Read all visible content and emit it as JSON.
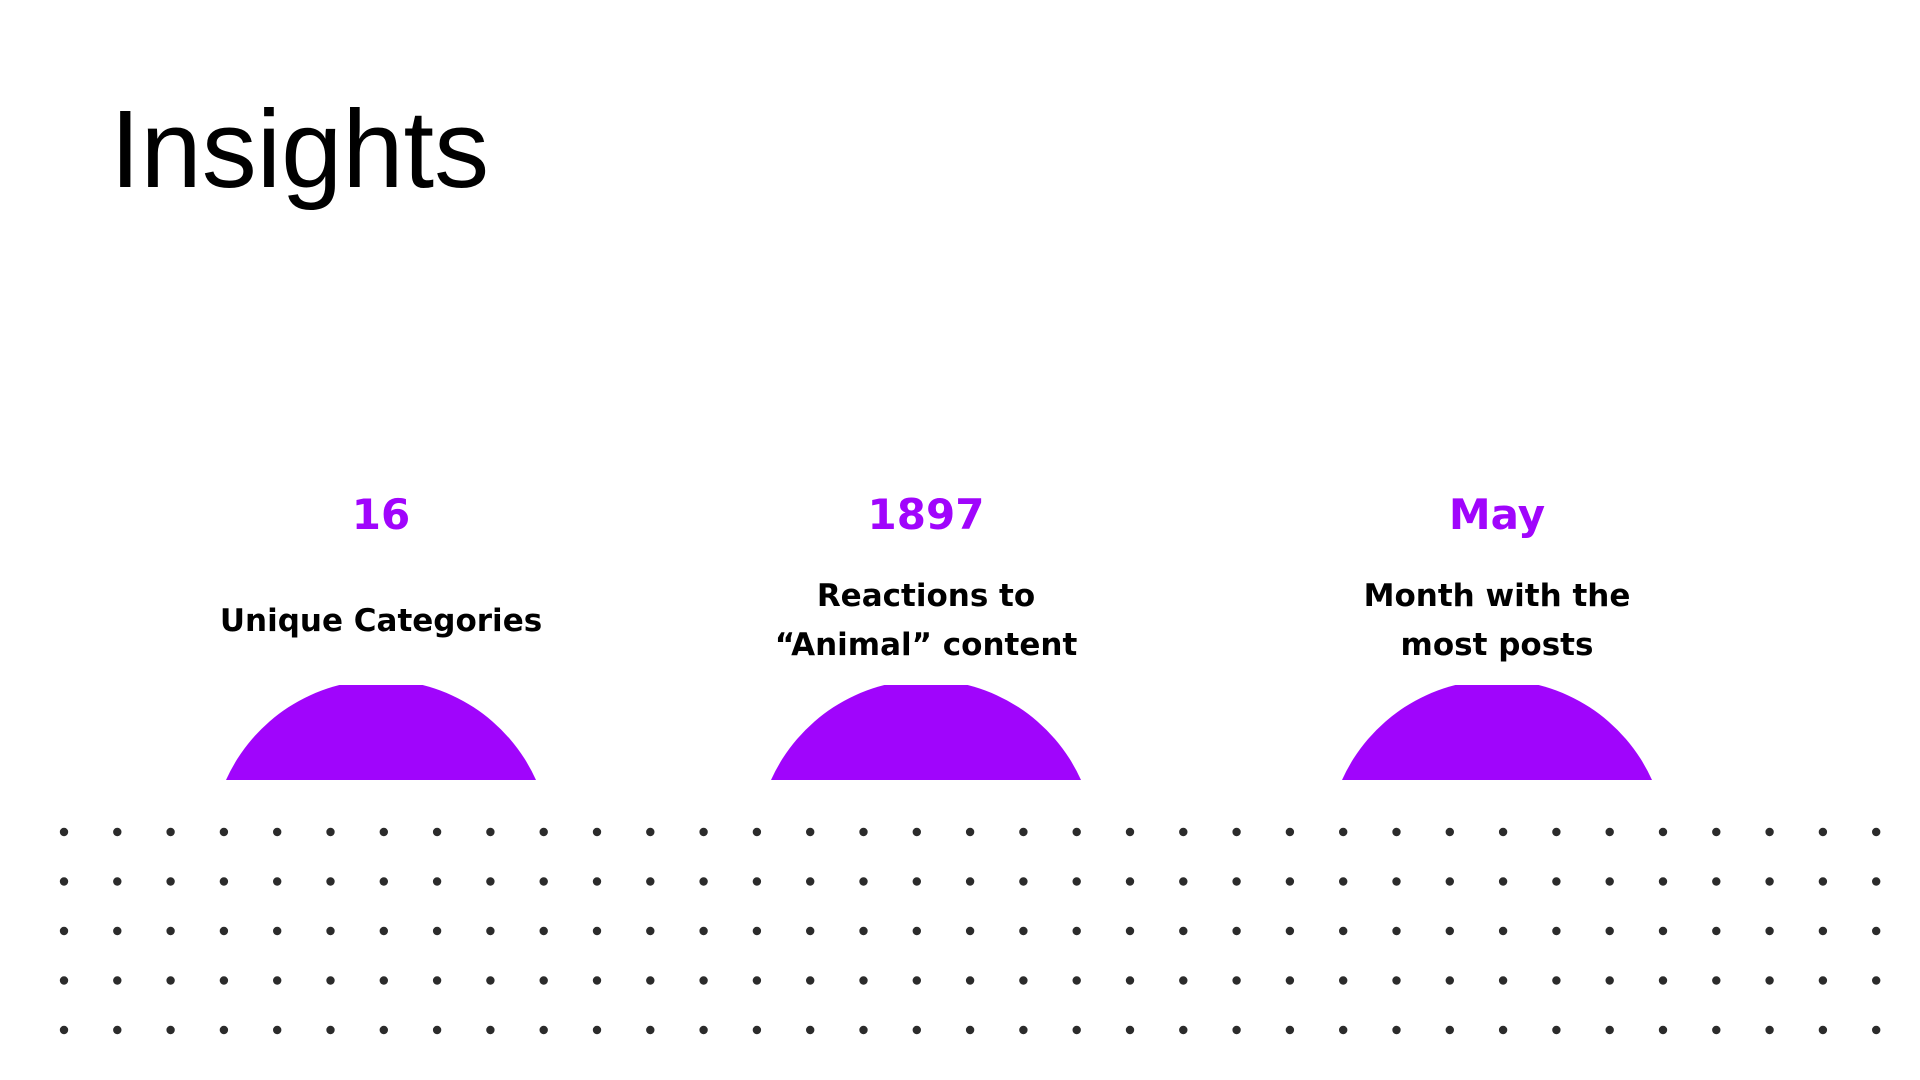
{
  "slide": {
    "title": "Insights"
  },
  "stats": [
    {
      "value": "16",
      "label_lines": [
        "Unique Categories"
      ]
    },
    {
      "value": "1897",
      "label_lines": [
        "Reactions to",
        "“Animal” content"
      ]
    },
    {
      "value": "May",
      "label_lines": [
        "Month with the",
        "most posts"
      ]
    }
  ],
  "colors": {
    "accent": "#a005fc",
    "text": "#000000",
    "dots": "#2b2b2b",
    "background": "#ffffff"
  }
}
